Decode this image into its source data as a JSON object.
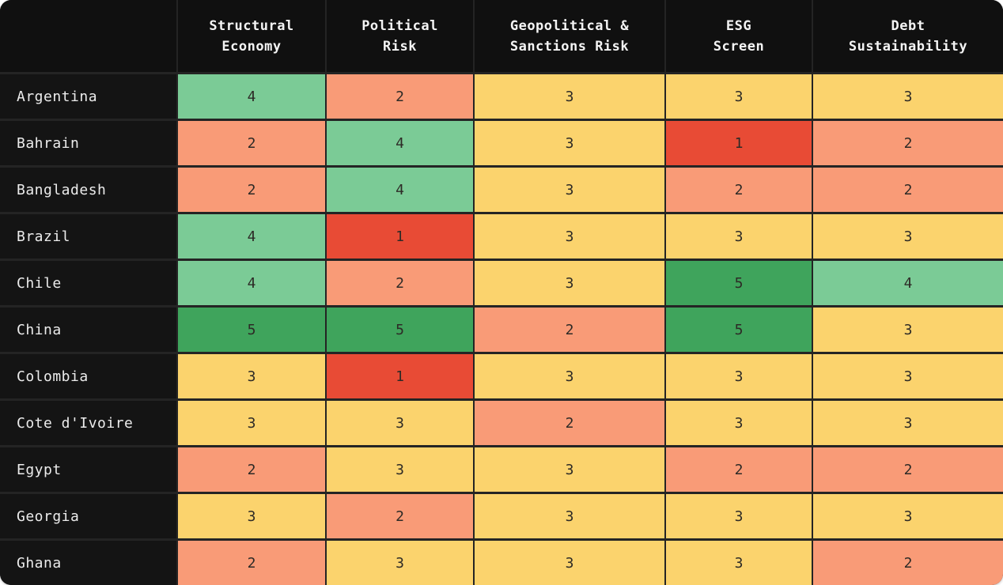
{
  "table": {
    "corner_label": "",
    "columns": [
      {
        "label": "Structural Economy",
        "lines": [
          "Structural",
          "Economy"
        ]
      },
      {
        "label": "Political Risk",
        "lines": [
          "Political",
          "Risk"
        ]
      },
      {
        "label": "Geopolitical & Sanctions Risk",
        "lines": [
          "Geopolitical &",
          "Sanctions Risk"
        ]
      },
      {
        "label": "ESG Screen",
        "lines": [
          "ESG",
          "Screen"
        ]
      },
      {
        "label": "Debt Sustainability",
        "lines": [
          "Debt",
          "Sustainability"
        ]
      }
    ],
    "rows": [
      {
        "country": "Argentina",
        "scores": [
          4,
          2,
          3,
          3,
          3
        ]
      },
      {
        "country": "Bahrain",
        "scores": [
          2,
          4,
          3,
          1,
          2
        ]
      },
      {
        "country": "Bangladesh",
        "scores": [
          2,
          4,
          3,
          2,
          2
        ]
      },
      {
        "country": "Brazil",
        "scores": [
          4,
          1,
          3,
          3,
          3
        ]
      },
      {
        "country": "Chile",
        "scores": [
          4,
          2,
          3,
          5,
          4
        ]
      },
      {
        "country": "China",
        "scores": [
          5,
          5,
          2,
          5,
          3
        ]
      },
      {
        "country": "Colombia",
        "scores": [
          3,
          1,
          3,
          3,
          3
        ]
      },
      {
        "country": "Cote d'Ivoire",
        "scores": [
          3,
          3,
          2,
          3,
          3
        ]
      },
      {
        "country": "Egypt",
        "scores": [
          2,
          3,
          3,
          2,
          2
        ]
      },
      {
        "country": "Georgia",
        "scores": [
          3,
          2,
          3,
          3,
          3
        ]
      },
      {
        "country": "Ghana",
        "scores": [
          2,
          3,
          3,
          3,
          2
        ]
      }
    ]
  },
  "score_colors": {
    "1": "#e84b35",
    "2": "#f99b77",
    "3": "#fbd36d",
    "4": "#7bcb96",
    "5": "#3fa45c"
  },
  "style_colors": {
    "card_background": "#242424",
    "header_background": "#101010",
    "row_label_background": "#141414",
    "header_text": "#f4f4f4",
    "row_label_text": "#ececec",
    "cell_value_text": "#2d2a26",
    "page_background": "#ffffff"
  },
  "chart_data": {
    "type": "heatmap",
    "x_categories": [
      "Structural Economy",
      "Political Risk",
      "Geopolitical & Sanctions Risk",
      "ESG Screen",
      "Debt Sustainability"
    ],
    "y_categories": [
      "Argentina",
      "Bahrain",
      "Bangladesh",
      "Brazil",
      "Chile",
      "China",
      "Colombia",
      "Cote d'Ivoire",
      "Egypt",
      "Georgia",
      "Ghana"
    ],
    "values": [
      [
        4,
        2,
        3,
        3,
        3
      ],
      [
        2,
        4,
        3,
        1,
        2
      ],
      [
        2,
        4,
        3,
        2,
        2
      ],
      [
        4,
        1,
        3,
        3,
        3
      ],
      [
        4,
        2,
        3,
        5,
        4
      ],
      [
        5,
        5,
        2,
        5,
        3
      ],
      [
        3,
        1,
        3,
        3,
        3
      ],
      [
        3,
        3,
        2,
        3,
        3
      ],
      [
        2,
        3,
        3,
        2,
        2
      ],
      [
        3,
        2,
        3,
        3,
        3
      ],
      [
        2,
        3,
        3,
        3,
        2
      ]
    ],
    "scale": {
      "min": 1,
      "max": 5
    },
    "scale_colors": {
      "1": "#e84b35",
      "2": "#f99b77",
      "3": "#fbd36d",
      "4": "#7bcb96",
      "5": "#3fa45c"
    },
    "legend_position": "none",
    "grid": true
  }
}
